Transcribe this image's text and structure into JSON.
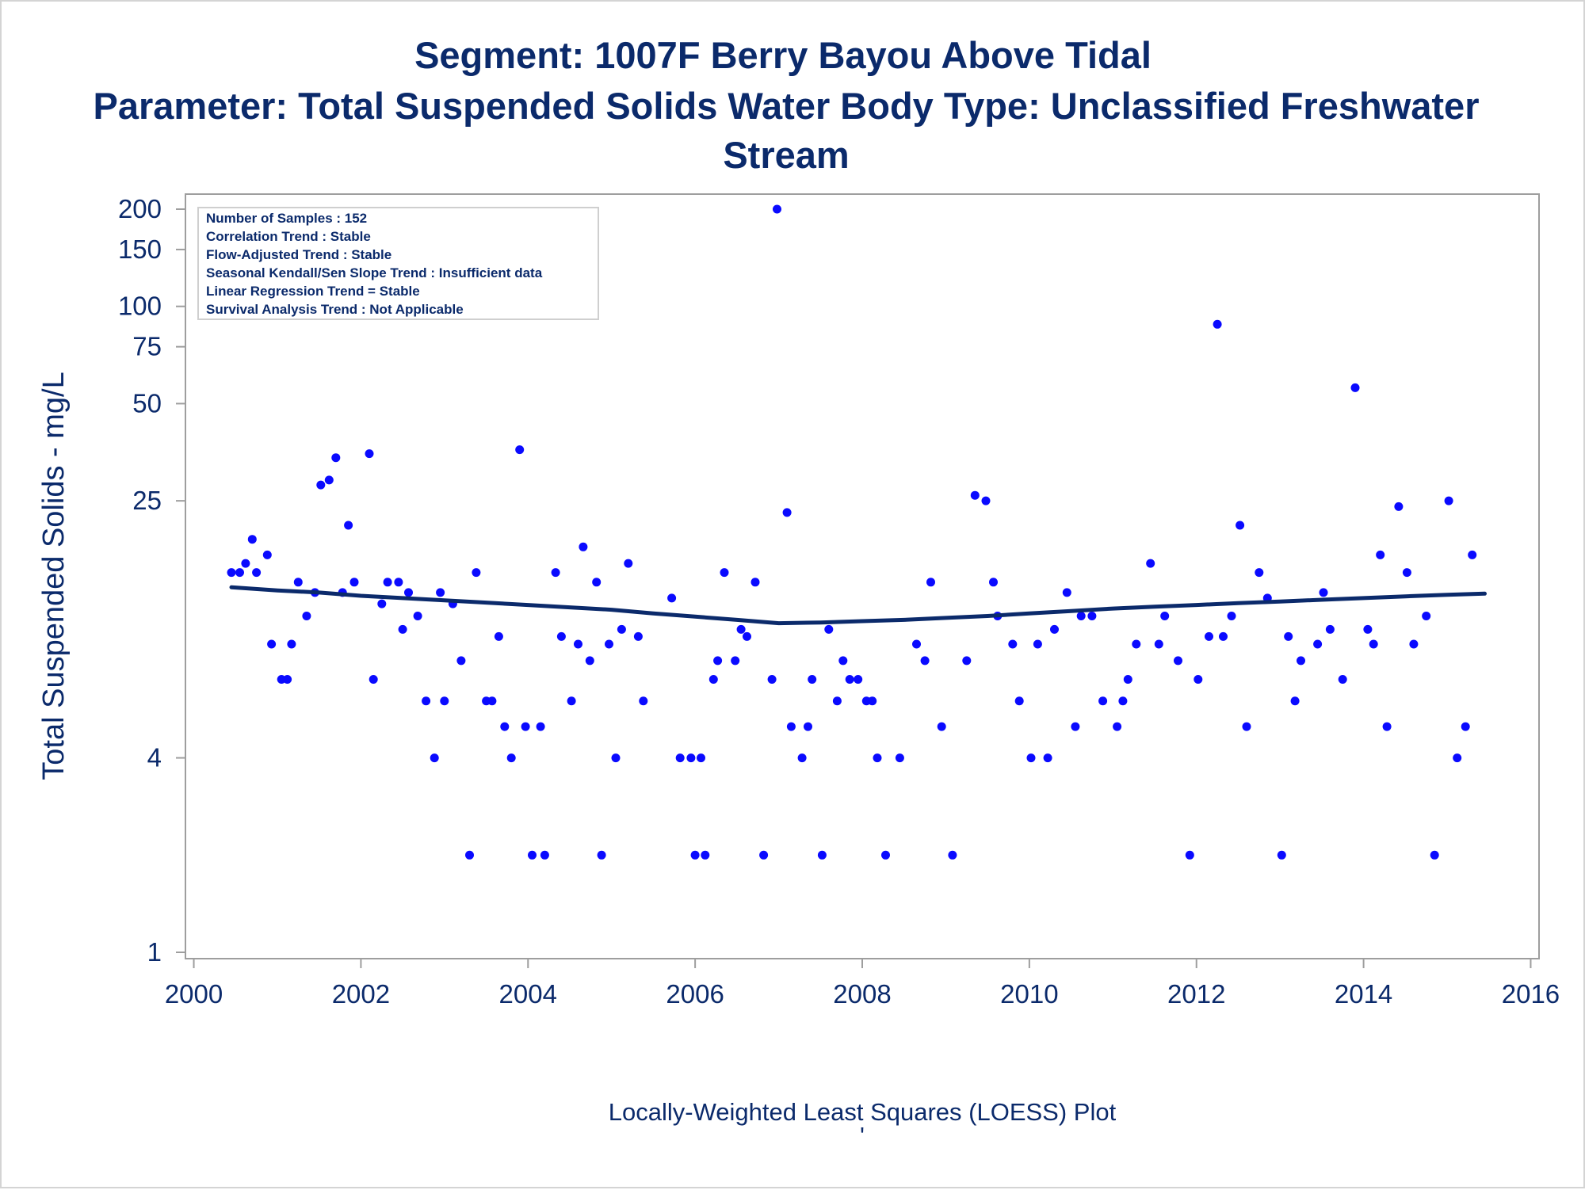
{
  "chart_data": {
    "type": "scatter",
    "title": "Segment: 1007F  Berry Bayou Above Tidal",
    "subtitle_lines": [
      "Parameter: Total Suspended Solids   Water Body Type: Unclassified Freshwater",
      "Stream"
    ],
    "ylabel": "Total Suspended Solids - mg/L",
    "xlabel": "",
    "footnote": "Locally-Weighted Least Squares (LOESS) Plot",
    "footnote_mark": "'",
    "y_scale": "log",
    "xlim": [
      2000,
      2016
    ],
    "ylim": [
      1,
      220
    ],
    "x_ticks": [
      2000,
      2002,
      2004,
      2006,
      2008,
      2010,
      2012,
      2014,
      2016
    ],
    "y_ticks": [
      1,
      4,
      25,
      50,
      75,
      100,
      150,
      200
    ],
    "grid": false,
    "legend": "none",
    "stats_box": {
      "placement": "top-left",
      "lines": [
        "Number of Samples : 152",
        "Correlation Trend : Stable",
        "Flow-Adjusted Trend : Stable",
        "Seasonal Kendall/Sen Slope Trend : Insufficient data",
        "Linear Regression Trend = Stable",
        "Survival Analysis Trend : Not Applicable"
      ]
    },
    "series": [
      {
        "kind": "points",
        "color": "#0a0aff",
        "points": [
          [
            2000.45,
            15
          ],
          [
            2000.55,
            15
          ],
          [
            2000.62,
            16
          ],
          [
            2000.7,
            19
          ],
          [
            2000.75,
            15
          ],
          [
            2000.88,
            17
          ],
          [
            2000.93,
            9
          ],
          [
            2001.05,
            7
          ],
          [
            2001.12,
            7
          ],
          [
            2001.17,
            9
          ],
          [
            2001.25,
            14
          ],
          [
            2001.35,
            11
          ],
          [
            2001.45,
            13
          ],
          [
            2001.52,
            28
          ],
          [
            2001.62,
            29
          ],
          [
            2001.7,
            34
          ],
          [
            2001.78,
            13
          ],
          [
            2001.85,
            21
          ],
          [
            2001.92,
            14
          ],
          [
            2002.1,
            35
          ],
          [
            2002.15,
            7
          ],
          [
            2002.25,
            12
          ],
          [
            2002.32,
            14
          ],
          [
            2002.45,
            14
          ],
          [
            2002.5,
            10
          ],
          [
            2002.57,
            13
          ],
          [
            2002.68,
            11
          ],
          [
            2002.78,
            6
          ],
          [
            2002.88,
            4
          ],
          [
            2002.95,
            13
          ],
          [
            2003.0,
            6
          ],
          [
            2003.1,
            12
          ],
          [
            2003.2,
            8
          ],
          [
            2003.3,
            2
          ],
          [
            2003.38,
            15
          ],
          [
            2003.5,
            6
          ],
          [
            2003.57,
            6
          ],
          [
            2003.65,
            9.5
          ],
          [
            2003.72,
            5
          ],
          [
            2003.8,
            4
          ],
          [
            2003.9,
            36
          ],
          [
            2003.97,
            5
          ],
          [
            2004.05,
            2
          ],
          [
            2004.15,
            5
          ],
          [
            2004.2,
            2
          ],
          [
            2004.33,
            15
          ],
          [
            2004.4,
            9.5
          ],
          [
            2004.52,
            6
          ],
          [
            2004.6,
            9
          ],
          [
            2004.66,
            18
          ],
          [
            2004.74,
            8
          ],
          [
            2004.82,
            14
          ],
          [
            2004.88,
            2
          ],
          [
            2004.97,
            9
          ],
          [
            2005.05,
            4
          ],
          [
            2005.12,
            10
          ],
          [
            2005.2,
            16
          ],
          [
            2005.32,
            9.5
          ],
          [
            2005.38,
            6
          ],
          [
            2005.72,
            12.5
          ],
          [
            2005.82,
            4
          ],
          [
            2005.95,
            4
          ],
          [
            2006.0,
            2
          ],
          [
            2006.07,
            4
          ],
          [
            2006.12,
            2
          ],
          [
            2006.22,
            7
          ],
          [
            2006.27,
            8
          ],
          [
            2006.35,
            15
          ],
          [
            2006.48,
            8
          ],
          [
            2006.55,
            10
          ],
          [
            2006.62,
            9.5
          ],
          [
            2006.72,
            14
          ],
          [
            2006.82,
            2
          ],
          [
            2006.92,
            7
          ],
          [
            2006.98,
            200
          ],
          [
            2007.1,
            23
          ],
          [
            2007.15,
            5
          ],
          [
            2007.28,
            4
          ],
          [
            2007.35,
            5
          ],
          [
            2007.4,
            7
          ],
          [
            2007.52,
            2
          ],
          [
            2007.6,
            10
          ],
          [
            2007.7,
            6
          ],
          [
            2007.77,
            8
          ],
          [
            2007.85,
            7
          ],
          [
            2007.95,
            7
          ],
          [
            2008.05,
            6
          ],
          [
            2008.12,
            6
          ],
          [
            2008.18,
            4
          ],
          [
            2008.28,
            2
          ],
          [
            2008.45,
            4
          ],
          [
            2008.65,
            9
          ],
          [
            2008.75,
            8
          ],
          [
            2008.82,
            14
          ],
          [
            2008.95,
            5
          ],
          [
            2009.08,
            2
          ],
          [
            2009.25,
            8
          ],
          [
            2009.35,
            26
          ],
          [
            2009.48,
            25
          ],
          [
            2009.57,
            14
          ],
          [
            2009.62,
            11
          ],
          [
            2009.8,
            9
          ],
          [
            2009.88,
            6
          ],
          [
            2010.02,
            4
          ],
          [
            2010.1,
            9
          ],
          [
            2010.22,
            4
          ],
          [
            2010.3,
            10
          ],
          [
            2010.45,
            13
          ],
          [
            2010.55,
            5
          ],
          [
            2010.62,
            11
          ],
          [
            2010.75,
            11
          ],
          [
            2010.88,
            6
          ],
          [
            2011.05,
            5
          ],
          [
            2011.12,
            6
          ],
          [
            2011.18,
            7
          ],
          [
            2011.28,
            9
          ],
          [
            2011.45,
            16
          ],
          [
            2011.55,
            9
          ],
          [
            2011.62,
            11
          ],
          [
            2011.78,
            8
          ],
          [
            2011.92,
            2
          ],
          [
            2012.02,
            7
          ],
          [
            2012.15,
            9.5
          ],
          [
            2012.25,
            88
          ],
          [
            2012.32,
            9.5
          ],
          [
            2012.42,
            11
          ],
          [
            2012.52,
            21
          ],
          [
            2012.6,
            5
          ],
          [
            2012.75,
            15
          ],
          [
            2012.85,
            12.5
          ],
          [
            2013.02,
            2
          ],
          [
            2013.1,
            9.5
          ],
          [
            2013.18,
            6
          ],
          [
            2013.25,
            8
          ],
          [
            2013.45,
            9
          ],
          [
            2013.52,
            13
          ],
          [
            2013.6,
            10
          ],
          [
            2013.75,
            7
          ],
          [
            2013.9,
            56
          ],
          [
            2014.05,
            10
          ],
          [
            2014.12,
            9
          ],
          [
            2014.2,
            17
          ],
          [
            2014.28,
            5
          ],
          [
            2014.42,
            24
          ],
          [
            2014.52,
            15
          ],
          [
            2014.6,
            9
          ],
          [
            2014.75,
            11
          ],
          [
            2014.85,
            2
          ],
          [
            2015.02,
            25
          ],
          [
            2015.12,
            4
          ],
          [
            2015.22,
            5
          ],
          [
            2015.3,
            17
          ]
        ]
      },
      {
        "kind": "loess-line",
        "color": "#0b2a6b",
        "points": [
          [
            2000.45,
            13.5
          ],
          [
            2001.0,
            13.2
          ],
          [
            2001.5,
            13.0
          ],
          [
            2002.0,
            12.7
          ],
          [
            2002.5,
            12.5
          ],
          [
            2003.0,
            12.3
          ],
          [
            2003.5,
            12.1
          ],
          [
            2004.0,
            11.9
          ],
          [
            2004.5,
            11.7
          ],
          [
            2005.0,
            11.5
          ],
          [
            2005.5,
            11.2
          ],
          [
            2006.0,
            10.95
          ],
          [
            2006.5,
            10.7
          ],
          [
            2007.0,
            10.45
          ],
          [
            2007.5,
            10.5
          ],
          [
            2008.0,
            10.6
          ],
          [
            2008.5,
            10.7
          ],
          [
            2009.0,
            10.85
          ],
          [
            2009.5,
            11.0
          ],
          [
            2010.0,
            11.2
          ],
          [
            2010.5,
            11.4
          ],
          [
            2011.0,
            11.6
          ],
          [
            2011.5,
            11.75
          ],
          [
            2012.0,
            11.9
          ],
          [
            2012.5,
            12.05
          ],
          [
            2013.0,
            12.2
          ],
          [
            2013.5,
            12.35
          ],
          [
            2014.0,
            12.5
          ],
          [
            2014.5,
            12.65
          ],
          [
            2015.0,
            12.8
          ],
          [
            2015.45,
            12.9
          ]
        ]
      }
    ]
  }
}
